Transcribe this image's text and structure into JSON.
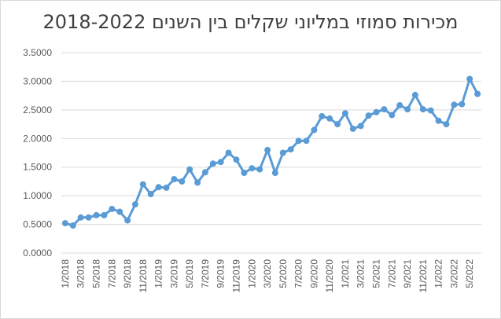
{
  "chart_data": {
    "type": "line",
    "title": "מכירות סמוזי במליוני שקלים בין השנים 2018-2022",
    "xlabel": "",
    "ylabel": "",
    "ylim": [
      0,
      3.5
    ],
    "yticks": [
      "0.0000",
      "0.5000",
      "1.0000",
      "1.5000",
      "2.0000",
      "2.5000",
      "3.0000",
      "3.5000"
    ],
    "grid": true,
    "legend": "none",
    "line_color": "#5b9bd5",
    "grid_color": "#d9d9d9",
    "x": [
      "1/2018",
      "2/2018",
      "3/2018",
      "4/2018",
      "5/2018",
      "6/2018",
      "7/2018",
      "8/2018",
      "9/2018",
      "10/2018",
      "11/2018",
      "12/2018",
      "1/2019",
      "2/2019",
      "3/2019",
      "4/2019",
      "5/2019",
      "6/2019",
      "7/2019",
      "8/2019",
      "9/2019",
      "10/2019",
      "11/2019",
      "12/2019",
      "1/2020",
      "2/2020",
      "3/2020",
      "4/2020",
      "5/2020",
      "6/2020",
      "7/2020",
      "8/2020",
      "9/2020",
      "10/2020",
      "11/2020",
      "12/2020",
      "1/2021",
      "2/2021",
      "3/2021",
      "4/2021",
      "5/2021",
      "6/2021",
      "7/2021",
      "8/2021",
      "9/2021",
      "10/2021",
      "11/2021",
      "12/2021",
      "1/2022",
      "2/2022",
      "3/2022",
      "4/2022",
      "5/2022",
      "6/2022"
    ],
    "xtick_labels": [
      "1/2018",
      "3/2018",
      "5/2018",
      "7/2018",
      "9/2018",
      "11/2018",
      "1/2019",
      "3/2019",
      "5/2019",
      "7/2019",
      "9/2019",
      "11/2019",
      "1/2020",
      "3/2020",
      "5/2020",
      "7/2020",
      "9/2020",
      "11/2020",
      "1/2021",
      "3/2021",
      "5/2021",
      "7/2021",
      "9/2021",
      "11/2021",
      "1/2022",
      "3/2022",
      "5/2022"
    ],
    "series": [
      {
        "values": [
          0.52,
          0.48,
          0.62,
          0.62,
          0.66,
          0.66,
          0.77,
          0.72,
          0.57,
          0.85,
          1.2,
          1.03,
          1.15,
          1.14,
          1.29,
          1.25,
          1.46,
          1.23,
          1.41,
          1.56,
          1.59,
          1.75,
          1.63,
          1.4,
          1.48,
          1.46,
          1.8,
          1.4,
          1.75,
          1.81,
          1.96,
          1.96,
          2.15,
          2.39,
          2.35,
          2.25,
          2.44,
          2.17,
          2.22,
          2.4,
          2.46,
          2.51,
          2.41,
          2.58,
          2.51,
          2.76,
          2.51,
          2.49,
          2.31,
          2.25,
          2.59,
          2.6,
          3.04,
          2.78
        ]
      }
    ]
  }
}
